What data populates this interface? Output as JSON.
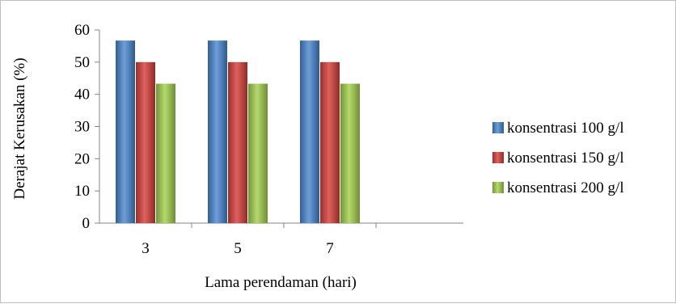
{
  "chart_data": {
    "type": "bar",
    "title": "",
    "xlabel": "Lama perendaman (hari)",
    "ylabel": "Derajat Kerusakan (%)",
    "categories": [
      "3",
      "5",
      "7"
    ],
    "ylim": [
      0,
      60
    ],
    "yticks": [
      "0",
      "10",
      "20",
      "30",
      "40",
      "50",
      "60"
    ],
    "grid": false,
    "legend_position": "right",
    "series": [
      {
        "name": "konsentrasi 100 g/l",
        "values": [
          56.7,
          56.7,
          56.7
        ],
        "color": "#4F81BD"
      },
      {
        "name": "konsentrasi 150 g/l",
        "values": [
          50,
          50,
          50
        ],
        "color": "#C0504D"
      },
      {
        "name": "konsentrasi 200 g/l",
        "values": [
          43.3,
          43.3,
          43.3
        ],
        "color": "#9BBB59"
      }
    ]
  }
}
